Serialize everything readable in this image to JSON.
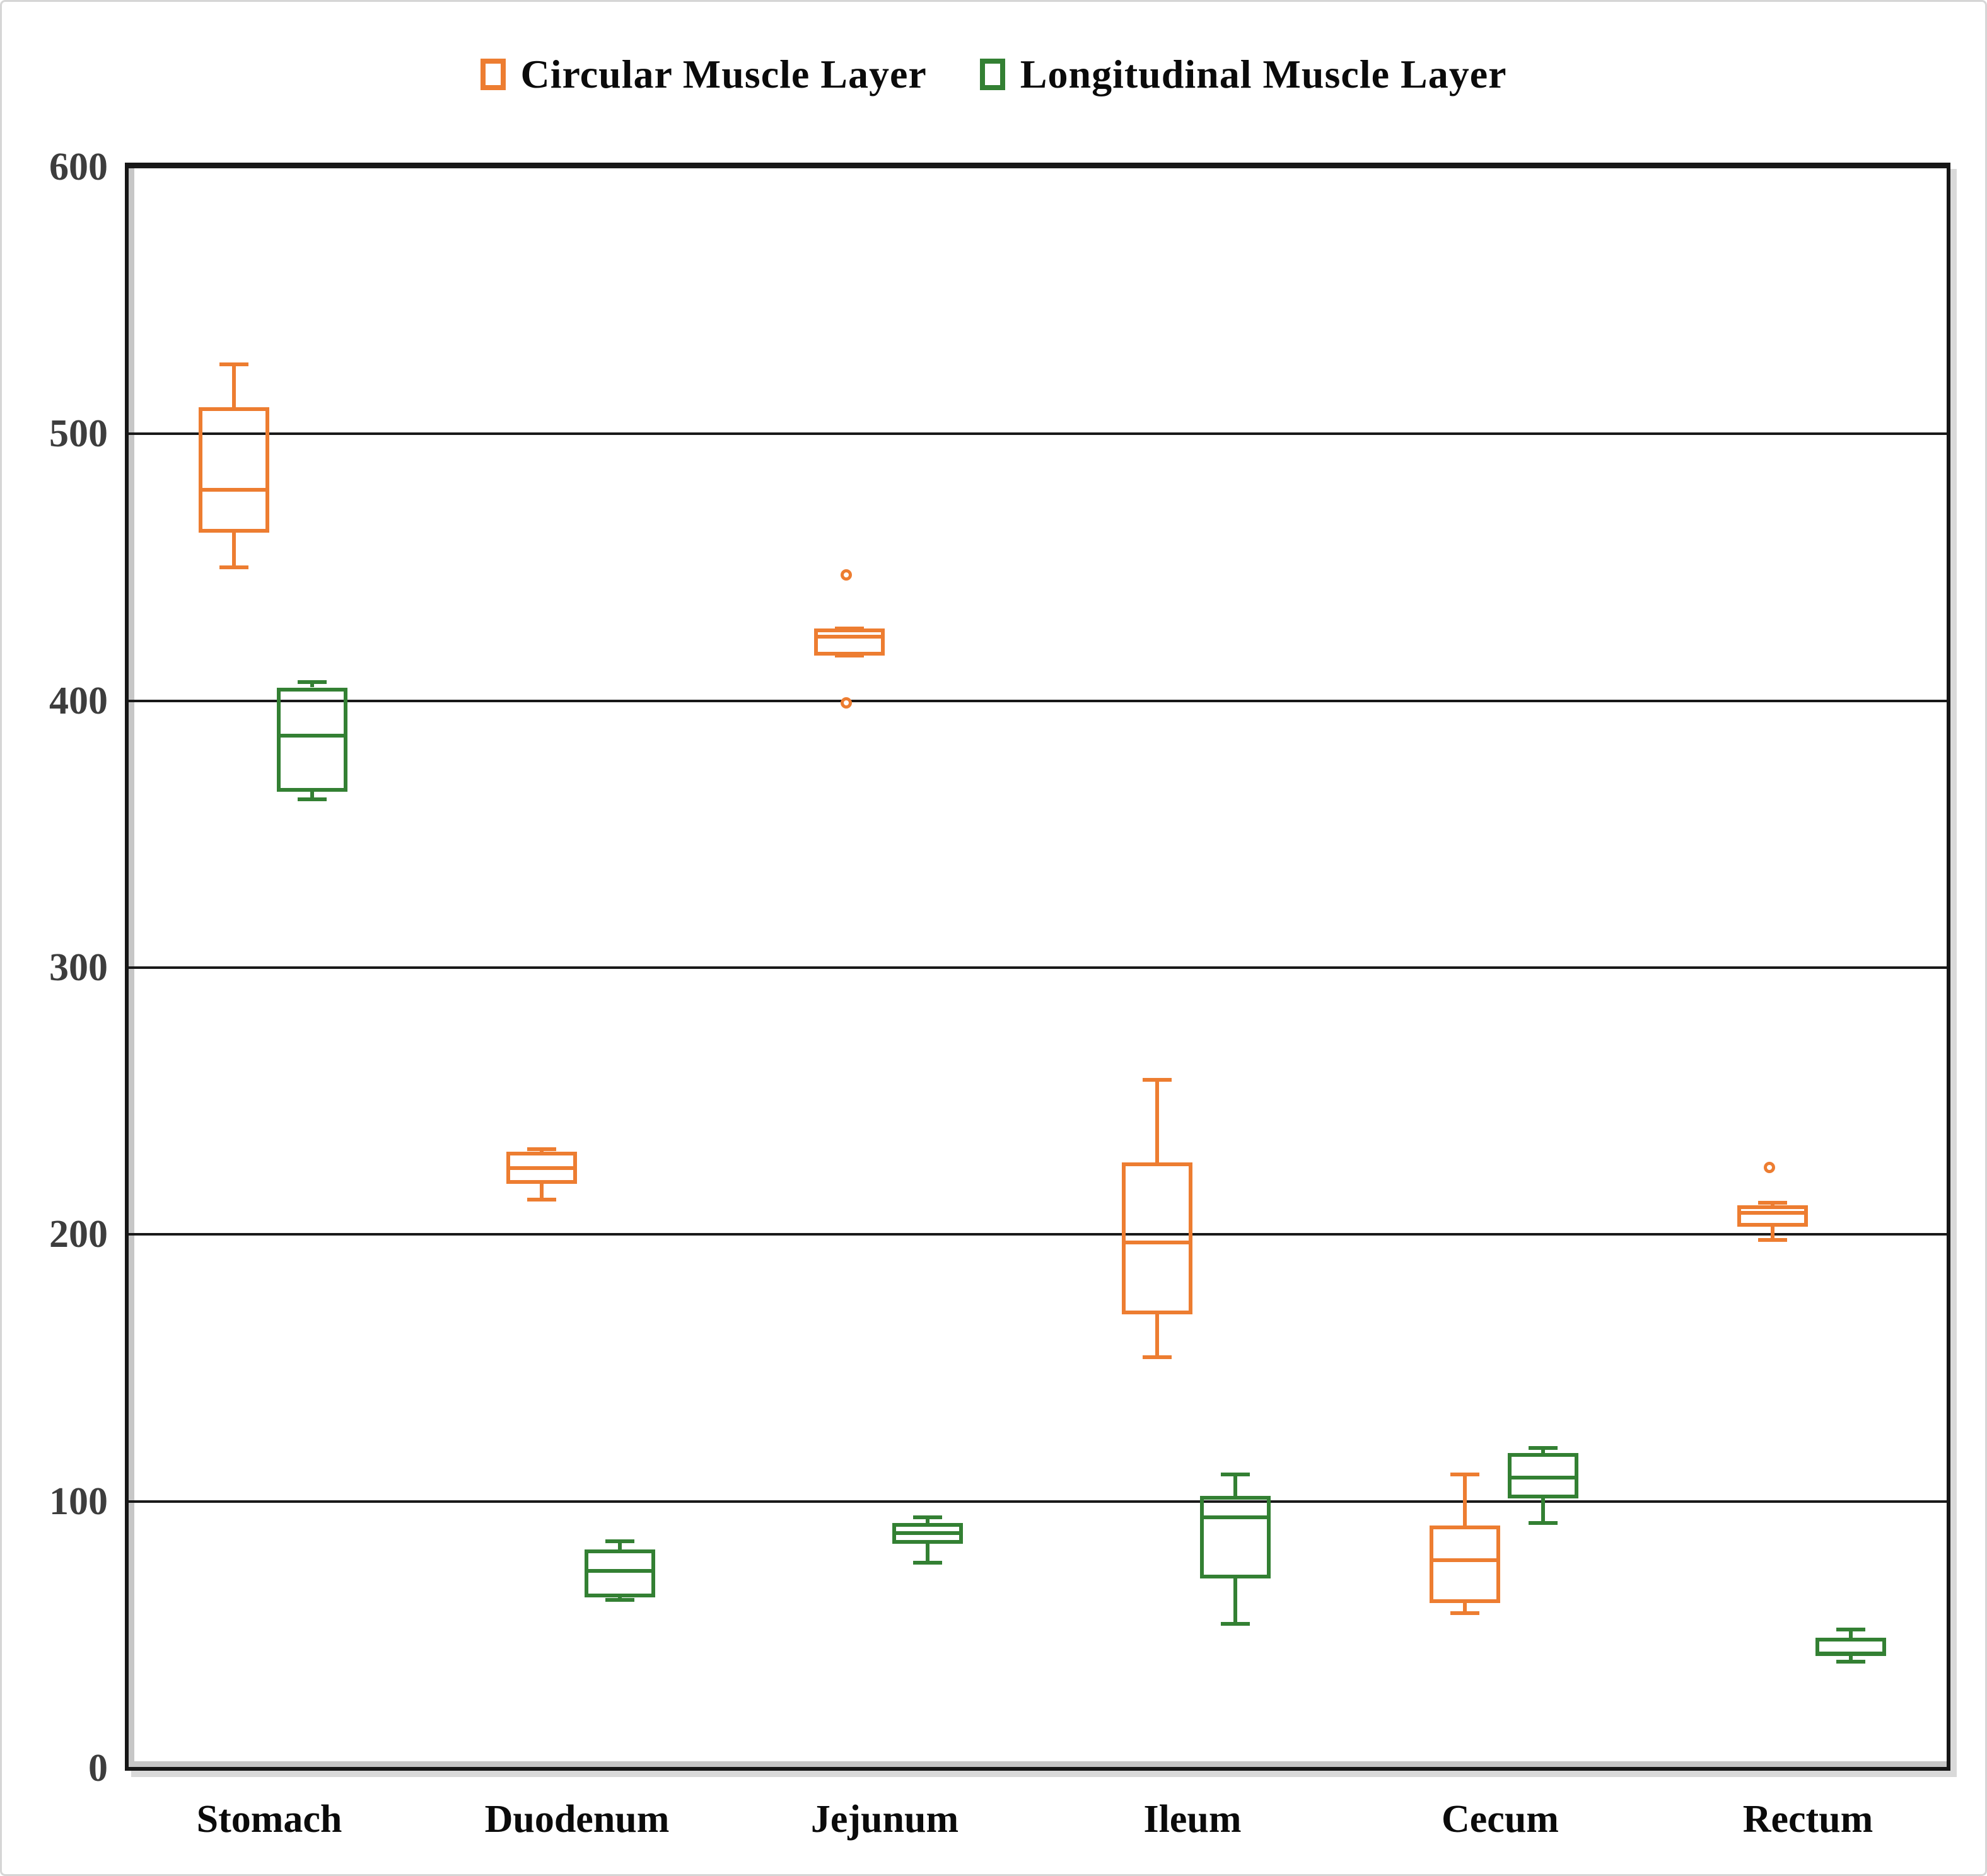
{
  "figure": {
    "background": "#ffffff",
    "frame_color": "#d6d6d6",
    "plot_border_color": "#161616",
    "gridline_color": "#191919"
  },
  "legend": {
    "items": [
      {
        "label": "Circular Muscle Layer",
        "color": "#ED7D31"
      },
      {
        "label": "Longitudinal Muscle Layer",
        "color": "#338033"
      }
    ]
  },
  "chart_data": {
    "type": "boxplot",
    "title": "",
    "xlabel": "",
    "ylabel": "",
    "ylim": [
      0,
      600
    ],
    "yticks": [
      0,
      100,
      200,
      300,
      400,
      500,
      600
    ],
    "grid": "horizontal",
    "legend_position": "top-center",
    "categories": [
      "Stomach",
      "Duodenum",
      "Jejunum",
      "Ileum",
      "Cecum",
      "Rectum"
    ],
    "series": [
      {
        "name": "Circular Muscle Layer",
        "color": "#ED7D31",
        "boxes": [
          {
            "category": "Stomach",
            "low": 450,
            "q1": 463,
            "median": 479,
            "q3": 510,
            "high": 526,
            "outliers": []
          },
          {
            "category": "Duodenum",
            "low": 213,
            "q1": 219,
            "median": 225,
            "q3": 231,
            "high": 232,
            "outliers": []
          },
          {
            "category": "Jejunum",
            "low": 417,
            "q1": 417,
            "median": 424,
            "q3": 427,
            "high": 427,
            "outliers": [
              446,
              398
            ]
          },
          {
            "category": "Ileum",
            "low": 154,
            "q1": 170,
            "median": 197,
            "q3": 227,
            "high": 258,
            "outliers": []
          },
          {
            "category": "Cecum",
            "low": 58,
            "q1": 62,
            "median": 78,
            "q3": 91,
            "high": 110,
            "outliers": []
          },
          {
            "category": "Rectum",
            "low": 198,
            "q1": 203,
            "median": 208,
            "q3": 211,
            "high": 212,
            "outliers": [
              224
            ]
          }
        ]
      },
      {
        "name": "Longitudinal Muscle Layer",
        "color": "#338033",
        "boxes": [
          {
            "category": "Stomach",
            "low": 363,
            "q1": 366,
            "median": 387,
            "q3": 405,
            "high": 407,
            "outliers": []
          },
          {
            "category": "Duodenum",
            "low": 63,
            "q1": 64,
            "median": 74,
            "q3": 82,
            "high": 85,
            "outliers": []
          },
          {
            "category": "Jejunum",
            "low": 77,
            "q1": 84,
            "median": 88,
            "q3": 92,
            "high": 94,
            "outliers": []
          },
          {
            "category": "Ileum",
            "low": 54,
            "q1": 71,
            "median": 94,
            "q3": 102,
            "high": 110,
            "outliers": []
          },
          {
            "category": "Cecum",
            "low": 92,
            "q1": 101,
            "median": 109,
            "q3": 118,
            "high": 120,
            "outliers": []
          },
          {
            "category": "Rectum",
            "low": 40,
            "q1": 42,
            "median": 43,
            "q3": 49,
            "high": 52,
            "outliers": []
          }
        ]
      }
    ]
  }
}
